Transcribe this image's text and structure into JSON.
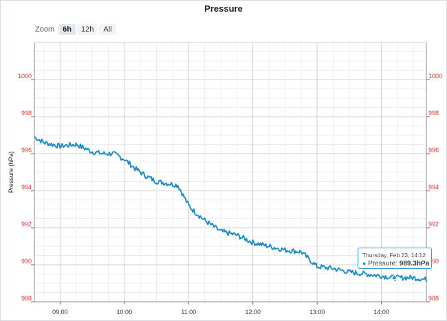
{
  "title": "Pressure",
  "zoom": {
    "label": "Zoom",
    "options": [
      "6h",
      "12h",
      "All"
    ],
    "selected": "6h"
  },
  "tooltip": {
    "date": "Thursday, Feb 23, 14:12",
    "series": "Pressure",
    "value": "989.3hPa"
  },
  "colors": {
    "line": "#1c8ec4",
    "axis_label": "#d9342b",
    "grid": "#d8d8d8",
    "tooltip_border": "#2f9fd0"
  },
  "chart_data": {
    "type": "line",
    "title": "Pressure",
    "ylabel": "Pressure (hPa)",
    "ylim": [
      988,
      1002
    ],
    "xlim": [
      "08:36",
      "14:42"
    ],
    "x_ticks": [
      "09:00",
      "10:00",
      "11:00",
      "12:00",
      "13:00",
      "14:00"
    ],
    "y_ticks": [
      988,
      990,
      992,
      994,
      996,
      998,
      1000
    ],
    "grid": true,
    "secondary_y_axis": true,
    "series": [
      {
        "name": "Pressure",
        "x": [
          "08:36",
          "08:45",
          "09:00",
          "09:15",
          "09:30",
          "09:40",
          "09:50",
          "10:00",
          "10:10",
          "10:20",
          "10:30",
          "10:40",
          "10:50",
          "11:00",
          "11:05",
          "11:15",
          "11:30",
          "11:45",
          "12:00",
          "12:15",
          "12:30",
          "12:45",
          "13:00",
          "13:15",
          "13:30",
          "13:45",
          "14:00",
          "14:12",
          "14:20",
          "14:30",
          "14:42"
        ],
        "values": [
          996.9,
          996.6,
          996.4,
          996.5,
          996.1,
          996.0,
          996.0,
          995.7,
          995.2,
          994.8,
          994.5,
          994.4,
          994.3,
          993.2,
          992.9,
          992.4,
          991.8,
          991.6,
          991.2,
          991.0,
          990.8,
          990.7,
          989.9,
          989.8,
          989.6,
          989.5,
          989.4,
          989.3,
          989.3,
          989.3,
          989.2
        ]
      }
    ]
  }
}
